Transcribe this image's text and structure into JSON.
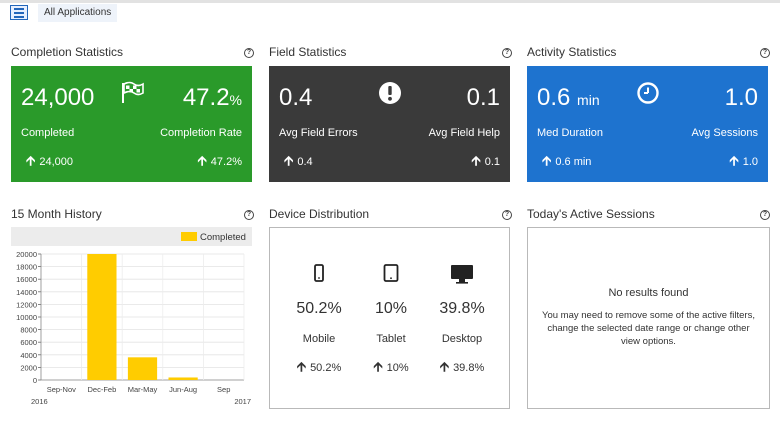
{
  "header": {
    "app_selector": "All Applications"
  },
  "completion": {
    "title": "Completion Statistics",
    "completed_value": "24,000",
    "rate_value": "47.2",
    "rate_unit": "%",
    "completed_label": "Completed",
    "rate_label": "Completion Rate",
    "completed_trend": "24,000",
    "rate_trend": "47.2%",
    "color": "#2a9a2a",
    "icon": "checkered-flag-icon"
  },
  "field": {
    "title": "Field Statistics",
    "errors_value": "0.4",
    "help_value": "0.1",
    "errors_label": "Avg Field Errors",
    "help_label": "Avg Field Help",
    "errors_trend": "0.4",
    "help_trend": "0.1",
    "color": "#3a3a3a",
    "icon": "exclamation-icon"
  },
  "activity": {
    "title": "Activity Statistics",
    "duration_value": "0.6",
    "duration_unit": "min",
    "sessions_value": "1.0",
    "duration_label": "Med Duration",
    "sessions_label": "Avg Sessions",
    "duration_trend": "0.6 min",
    "sessions_trend": "1.0",
    "color": "#1e73cf",
    "icon": "clock-icon"
  },
  "history": {
    "title": "15 Month History"
  },
  "devices": {
    "title": "Device Distribution",
    "items": [
      {
        "pct": "50.2%",
        "label": "Mobile",
        "trend": "50.2%",
        "icon": "mobile-icon"
      },
      {
        "pct": "10%",
        "label": "Tablet",
        "trend": "10%",
        "icon": "tablet-icon"
      },
      {
        "pct": "39.8%",
        "label": "Desktop",
        "trend": "39.8%",
        "icon": "desktop-icon"
      }
    ]
  },
  "sessions": {
    "title": "Today's Active Sessions",
    "empty_title": "No results found",
    "empty_message": "You may need to remove some of the active filters, change the selected date range or change other view options."
  },
  "chart_data": {
    "type": "bar",
    "categories": [
      "Sep-Nov",
      "Dec-Feb",
      "Mar-May",
      "Jun-Aug",
      "Sep"
    ],
    "x_sublabels": [
      "2016",
      "2017"
    ],
    "series": [
      {
        "name": "Completed",
        "values": [
          0,
          20000,
          3600,
          400,
          0
        ],
        "color": "#ffcc00"
      }
    ],
    "ylim": [
      0,
      20000
    ],
    "yticks": [
      "0",
      "2000",
      "4000",
      "6000",
      "8000",
      "10000",
      "12000",
      "14000",
      "16000",
      "18000",
      "20000"
    ],
    "legend": "top-right",
    "grid": true
  }
}
